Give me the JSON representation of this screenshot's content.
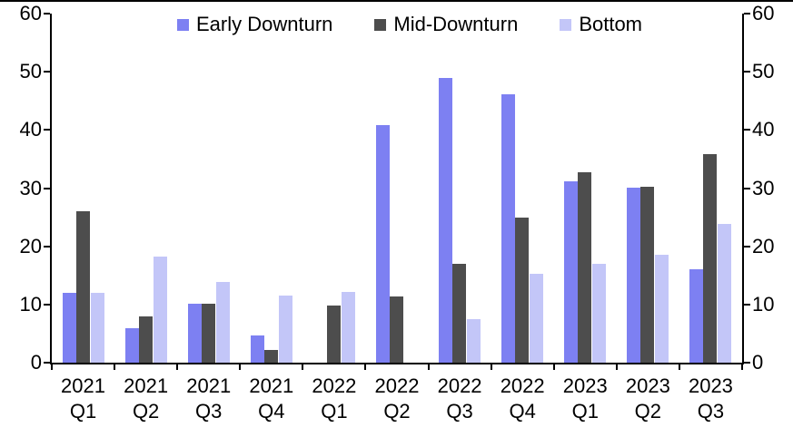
{
  "chart_data": {
    "type": "bar",
    "title": "",
    "xlabel": "",
    "ylabel": "",
    "categories": [
      "2021 Q1",
      "2021 Q2",
      "2021 Q3",
      "2021 Q4",
      "2022 Q1",
      "2022 Q2",
      "2022 Q3",
      "2022 Q4",
      "2023 Q1",
      "2023 Q2",
      "2023 Q3"
    ],
    "series": [
      {
        "name": "Early Downturn",
        "color": "#7D80F2",
        "values": [
          12,
          6,
          10.2,
          4.6,
          0,
          40.9,
          49,
          46.2,
          31.2,
          30.1,
          16
        ]
      },
      {
        "name": "Mid-Downturn",
        "color": "#4D4D4D",
        "values": [
          26.1,
          8,
          10.2,
          2.2,
          9.8,
          11.3,
          17,
          25,
          32.7,
          30.2,
          35.9
        ]
      },
      {
        "name": "Bottom",
        "color": "#C3C6F8",
        "values": [
          12,
          18.3,
          13.8,
          11.6,
          12.1,
          0,
          7.5,
          15.3,
          17,
          18.6,
          23.8
        ]
      }
    ],
    "ylim": [
      0,
      60
    ],
    "yticks": [
      0,
      10,
      20,
      30,
      40,
      50,
      60
    ],
    "y_axis_sides": [
      "left",
      "right"
    ],
    "legend_position": "top",
    "grid": false,
    "axis_color": "#000000",
    "background_color": "#ffffff"
  }
}
